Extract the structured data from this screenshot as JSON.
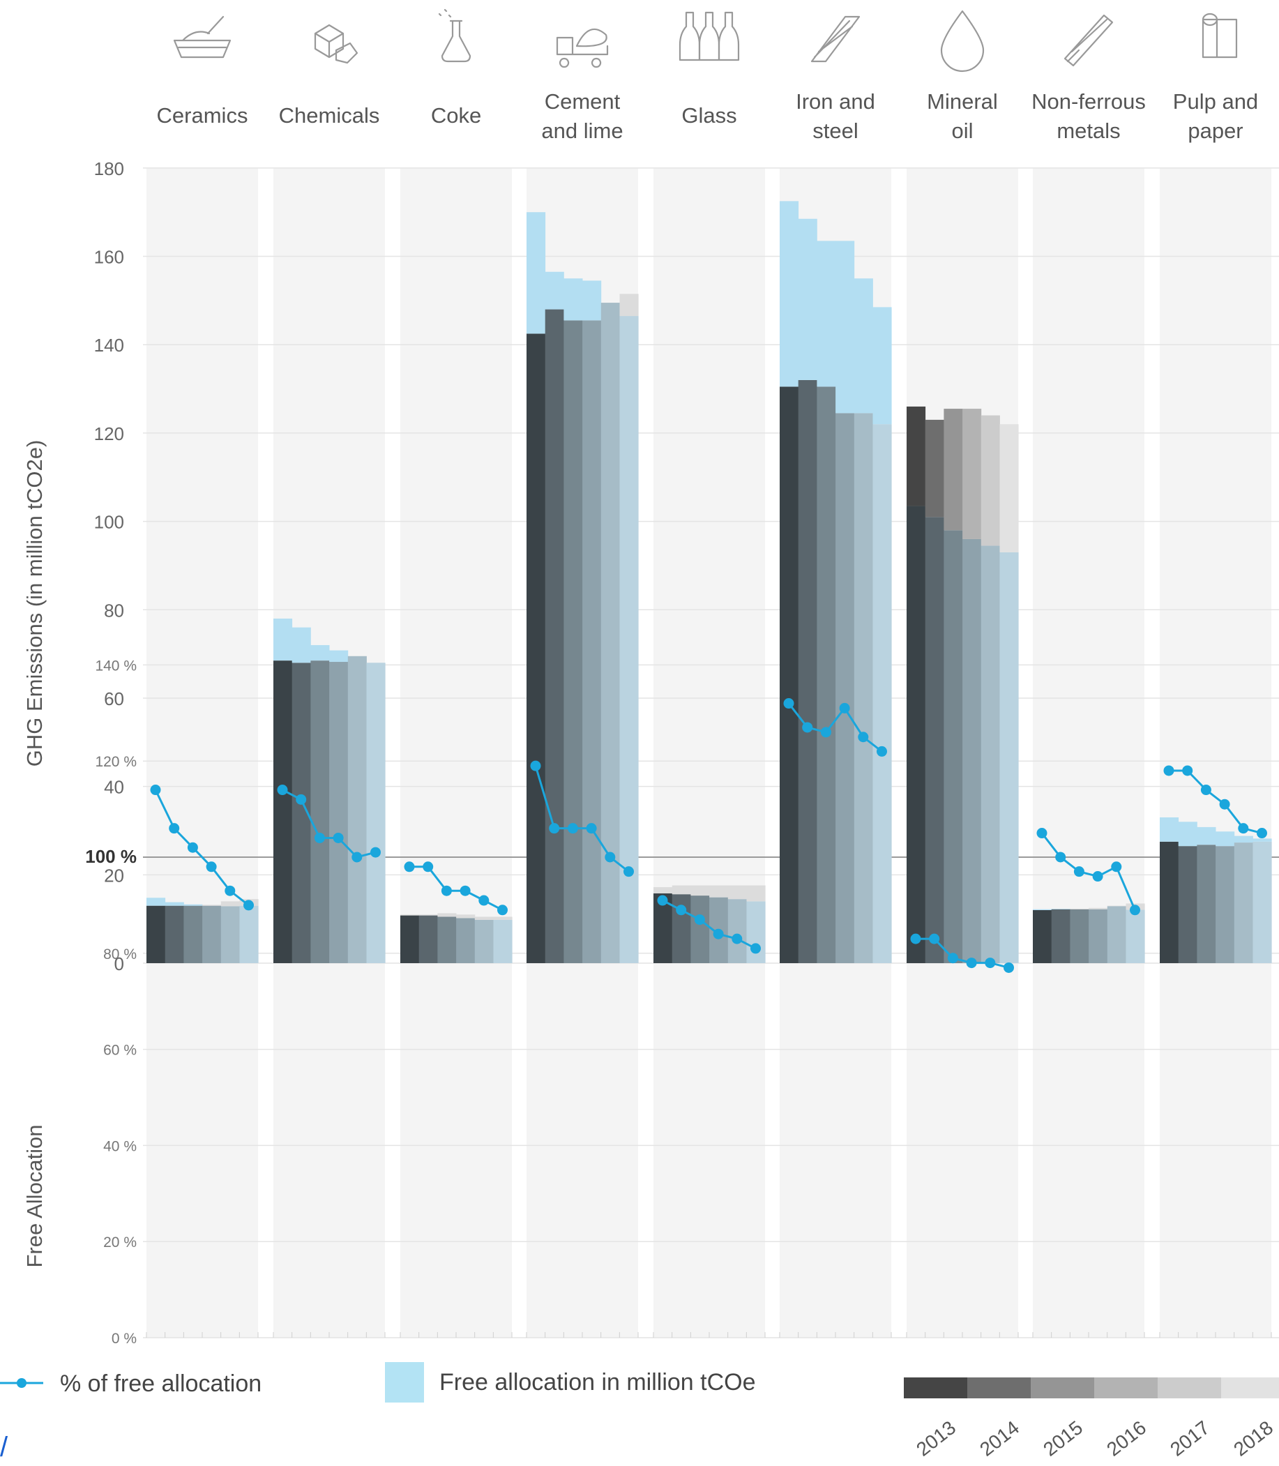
{
  "chart_data": [
    {
      "type": "bar",
      "ylabel": "GHG Emissions (in million tCO2e)",
      "ylim": [
        0,
        180
      ],
      "yticks": [
        0,
        20,
        40,
        60,
        80,
        100,
        120,
        140,
        160,
        180
      ],
      "categories": [
        "Ceramics",
        "Chemicals",
        "Coke",
        "Cement and lime",
        "Glass",
        "Iron and steel",
        "Mineral oil",
        "Non-ferrous metals",
        "Pulp and paper"
      ],
      "category_labels": [
        [
          "Ceramics"
        ],
        [
          "Chemicals"
        ],
        [
          "Coke"
        ],
        [
          "Cement",
          "and lime"
        ],
        [
          "Glass"
        ],
        [
          "Iron and",
          "steel"
        ],
        [
          "Mineral",
          "oil"
        ],
        [
          "Non-ferrous",
          "metals"
        ],
        [
          "Pulp and",
          "paper"
        ]
      ],
      "category_icons": [
        "bowl-icon",
        "cubes-icon",
        "flask-icon",
        "cement-truck-icon",
        "bottles-icon",
        "steel-beam-icon",
        "oil-drop-icon",
        "metal-bars-icon",
        "paper-roll-icon"
      ],
      "years": [
        "2013",
        "2014",
        "2015",
        "2016",
        "2017",
        "2018"
      ],
      "series": [
        {
          "name": "Emissions",
          "values": [
            [
              13,
              13,
              13,
              13.2,
              14,
              14.5
            ],
            [
              68.5,
              68,
              68.5,
              68.2,
              69.5,
              68
            ],
            [
              11,
              11,
              11.3,
              11,
              10.5,
              10.5
            ],
            [
              142.5,
              148,
              145.5,
              145.5,
              149.5,
              151.5
            ],
            [
              17.2,
              17.6,
              17.6,
              17.6,
              17.6,
              17.6
            ],
            [
              130.5,
              132,
              130.5,
              124.5,
              124.5,
              122
            ],
            [
              126,
              123,
              125.5,
              125.5,
              124,
              122
            ],
            [
              12,
              12.2,
              12.3,
              12.5,
              13,
              13.5
            ],
            [
              27.5,
              26.5,
              26.8,
              26.5,
              27.3,
              27.5
            ]
          ]
        },
        {
          "name": "Free allocation in million tCOe",
          "values": [
            [
              14.8,
              13.8,
              13.3,
              13,
              12.9,
              13
            ],
            [
              78,
              76,
              72,
              70.8,
              69.5,
              68
            ],
            [
              10.8,
              10.8,
              10.5,
              10.2,
              9.8,
              9.8
            ],
            [
              170,
              156.5,
              155,
              154.5,
              149.5,
              146.5
            ],
            [
              15.8,
              15.6,
              15.3,
              14.9,
              14.5,
              14
            ],
            [
              172.5,
              168.5,
              163.5,
              163.5,
              155,
              148.5
            ],
            [
              103.5,
              101,
              98,
              96,
              94.5,
              93
            ],
            [
              12.2,
              12.3,
              12.2,
              12.2,
              12.9,
              12.1
            ],
            [
              33,
              32,
              30.8,
              29.8,
              28.8,
              28.2
            ]
          ]
        }
      ],
      "colors": {
        "emission_shades": [
          "#3a4348",
          "#5a666d",
          "#76878f",
          "#8ea2ac",
          "#a6bcc7",
          "#bad3e0"
        ],
        "mineral_oil_shades": [
          "#454545",
          "#6e6e6e",
          "#959595",
          "#b3b3b3",
          "#cccccc",
          "#e2e2e2"
        ],
        "free_allocation": "#b3def2",
        "panel_background": "#f4f4f4"
      }
    },
    {
      "type": "line",
      "ylabel": "Free Allocation",
      "ylim": [
        0,
        140
      ],
      "yticks": [
        "0 %",
        "20 %",
        "40 %",
        "60 %",
        "80 %",
        "100 %",
        "120 %",
        "140 %"
      ],
      "reference_line": 100,
      "series": [
        {
          "name": "% of free allocation",
          "values": [
            [
              114,
              106,
              102,
              98,
              93,
              90
            ],
            [
              114,
              112,
              104,
              104,
              100,
              101
            ],
            [
              98,
              98,
              93,
              93,
              91,
              89
            ],
            [
              119,
              106,
              106,
              106,
              100,
              97
            ],
            [
              91,
              89,
              87,
              84,
              83,
              81
            ],
            [
              132,
              127,
              126,
              131,
              125,
              122
            ],
            [
              83,
              83,
              79,
              78,
              78,
              77
            ],
            [
              105,
              100,
              97,
              96,
              98,
              89
            ],
            [
              118,
              118,
              114,
              111,
              106,
              105
            ]
          ]
        }
      ],
      "colors": {
        "line": "#1aa6dc",
        "reference": "#9a9a9a"
      }
    }
  ],
  "legend": {
    "line_label": "% of free allocation",
    "area_label": "Free allocation in million tCOe",
    "years": [
      "2013",
      "2014",
      "2015",
      "2016",
      "2017",
      "2018"
    ],
    "year_shades": [
      "#454545",
      "#6e6e6e",
      "#959595",
      "#b3b3b3",
      "#cccccc",
      "#e2e2e2"
    ]
  }
}
